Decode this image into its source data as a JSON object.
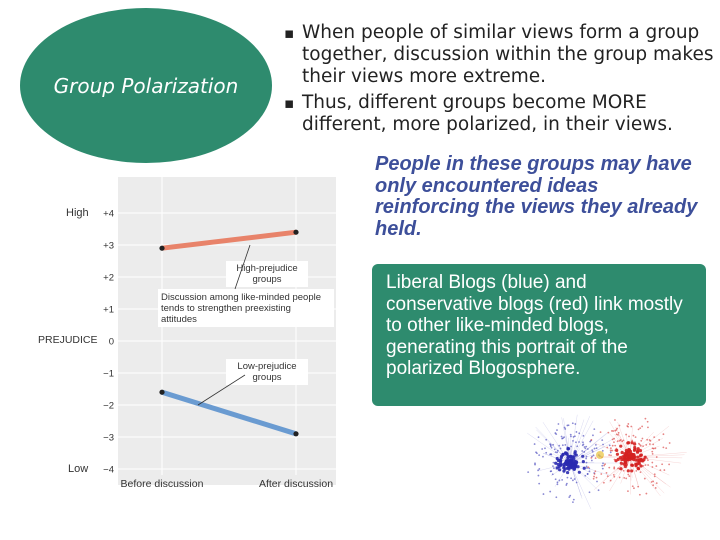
{
  "oval": {
    "title": "Group Polarization",
    "color": "#2e8b6e"
  },
  "bullets": [
    "When people of similar views form a group together, discussion within the group makes their views more extreme.",
    "Thus, different groups  become MORE different, more polarized, in their views."
  ],
  "bullet_glyph": "▪",
  "italic_note": "People in these groups may have only encountered ideas reinforcing the views they already held.",
  "green_box": {
    "text": "Liberal Blogs (blue) and conservative blogs (red) link mostly to other like-minded blogs, generating this portrait of the polarized Blogosphere."
  },
  "chart_data": {
    "type": "line",
    "x": [
      "Before discussion",
      "After discussion"
    ],
    "ylabel": "PREJUDICE",
    "y_ticks": [
      "+4",
      "+3",
      "+2",
      "+1",
      "0",
      "−1",
      "−2",
      "−3",
      "−4"
    ],
    "y_high_label": "High",
    "y_low_label": "Low",
    "ylim": [
      -4,
      4
    ],
    "grid": true,
    "series": [
      {
        "name": "High-prejudice groups",
        "values": [
          2.9,
          3.4
        ],
        "color": "#e8836a"
      },
      {
        "name": "Low-prejudice groups",
        "values": [
          -1.6,
          -2.9
        ],
        "color": "#6a9bd1"
      }
    ],
    "annotation": "Discussion among like-minded people tends to strengthen preexisting attitudes"
  },
  "network_image": {
    "icon": "blogosphere-network-icon",
    "colors": {
      "liberal": "#2a2ab0",
      "conservative": "#d42020"
    }
  }
}
